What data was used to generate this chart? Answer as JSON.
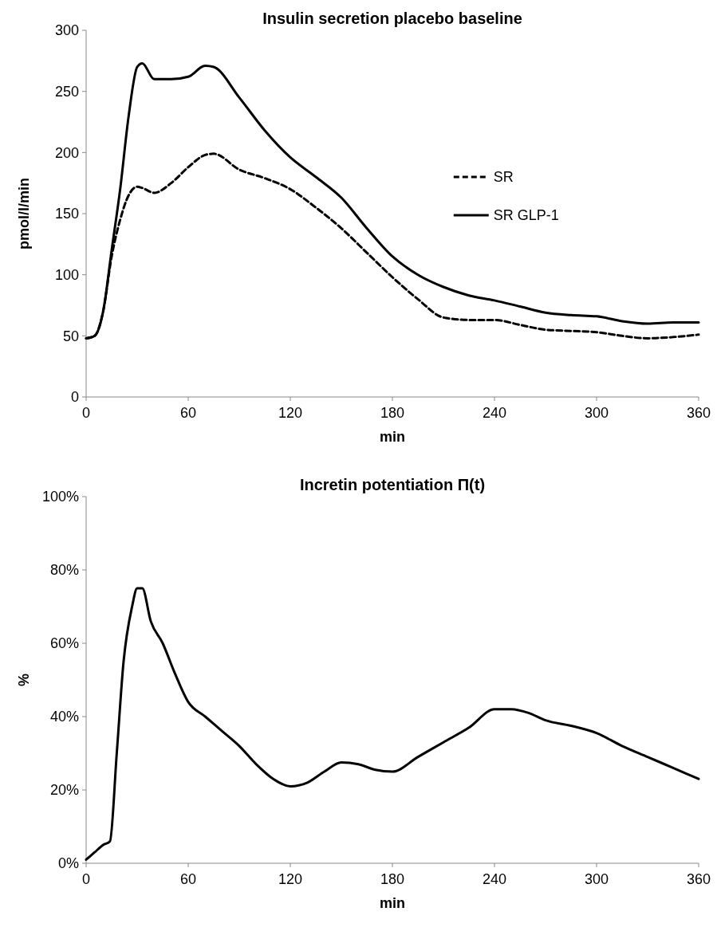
{
  "chart_data": [
    {
      "type": "line",
      "title": "Insulin secretion placebo baseline",
      "xlabel": "min",
      "ylabel": "pmol/l/min",
      "xlim": [
        0,
        360
      ],
      "xticks": [
        0,
        60,
        120,
        180,
        240,
        300,
        360
      ],
      "ylim": [
        0,
        300
      ],
      "yticks": [
        0,
        50,
        100,
        150,
        200,
        250,
        300
      ],
      "grid": false,
      "legend": "right",
      "marker": "none",
      "x": [
        0,
        5,
        10,
        15,
        20,
        25,
        30,
        33,
        40,
        50,
        60,
        70,
        75,
        90,
        105,
        120,
        135,
        150,
        165,
        180,
        195,
        210,
        225,
        240,
        255,
        270,
        285,
        300,
        315,
        330,
        345,
        360
      ],
      "series": [
        {
          "name": "SR",
          "color": "#000000",
          "line_style": "dashed",
          "values": [
            48,
            50,
            70,
            115,
            145,
            165,
            172,
            171,
            167,
            175,
            188,
            198,
            199,
            186,
            179,
            170,
            155,
            138,
            118,
            98,
            80,
            65,
            63,
            63,
            59,
            55,
            54,
            53,
            50,
            48,
            49,
            51
          ]
        },
        {
          "name": "SR GLP-1",
          "color": "#000000",
          "line_style": "solid",
          "values": [
            48,
            50,
            70,
            120,
            170,
            230,
            270,
            273,
            260,
            260,
            262,
            271,
            270,
            245,
            218,
            196,
            180,
            163,
            138,
            115,
            100,
            90,
            83,
            79,
            74,
            69,
            67,
            66,
            62,
            60,
            61,
            61
          ]
        }
      ]
    },
    {
      "type": "line",
      "title": "Incretin potentiation Π(t)",
      "xlabel": "min",
      "ylabel": "%",
      "xlim": [
        0,
        360
      ],
      "xticks": [
        0,
        60,
        120,
        180,
        240,
        300,
        360
      ],
      "ylim": [
        0,
        100
      ],
      "yticks": [
        {
          "value": 0,
          "label": "0%"
        },
        {
          "value": 20,
          "label": "20%"
        },
        {
          "value": 40,
          "label": "40%"
        },
        {
          "value": 60,
          "label": "60%"
        },
        {
          "value": 80,
          "label": "80%"
        },
        {
          "value": 100,
          "label": "100%"
        }
      ],
      "grid": false,
      "legend": false,
      "marker": "none",
      "x": [
        0,
        5,
        10,
        14,
        18,
        22,
        27,
        30,
        33,
        38,
        45,
        52,
        60,
        70,
        80,
        90,
        100,
        110,
        120,
        130,
        140,
        150,
        160,
        170,
        180,
        195,
        210,
        225,
        240,
        250,
        260,
        270,
        285,
        300,
        315,
        330,
        345,
        360
      ],
      "series": [
        {
          "color": "#000000",
          "line_style": "solid",
          "values": [
            1,
            3,
            5,
            6,
            30,
            55,
            70,
            75,
            75,
            66,
            60,
            52,
            44,
            40,
            36,
            32,
            27,
            23,
            21,
            22,
            25,
            27.5,
            27,
            25.5,
            25,
            29,
            33,
            37,
            42,
            42,
            41,
            39,
            37.5,
            35.5,
            32,
            29,
            26,
            23
          ]
        }
      ]
    }
  ]
}
